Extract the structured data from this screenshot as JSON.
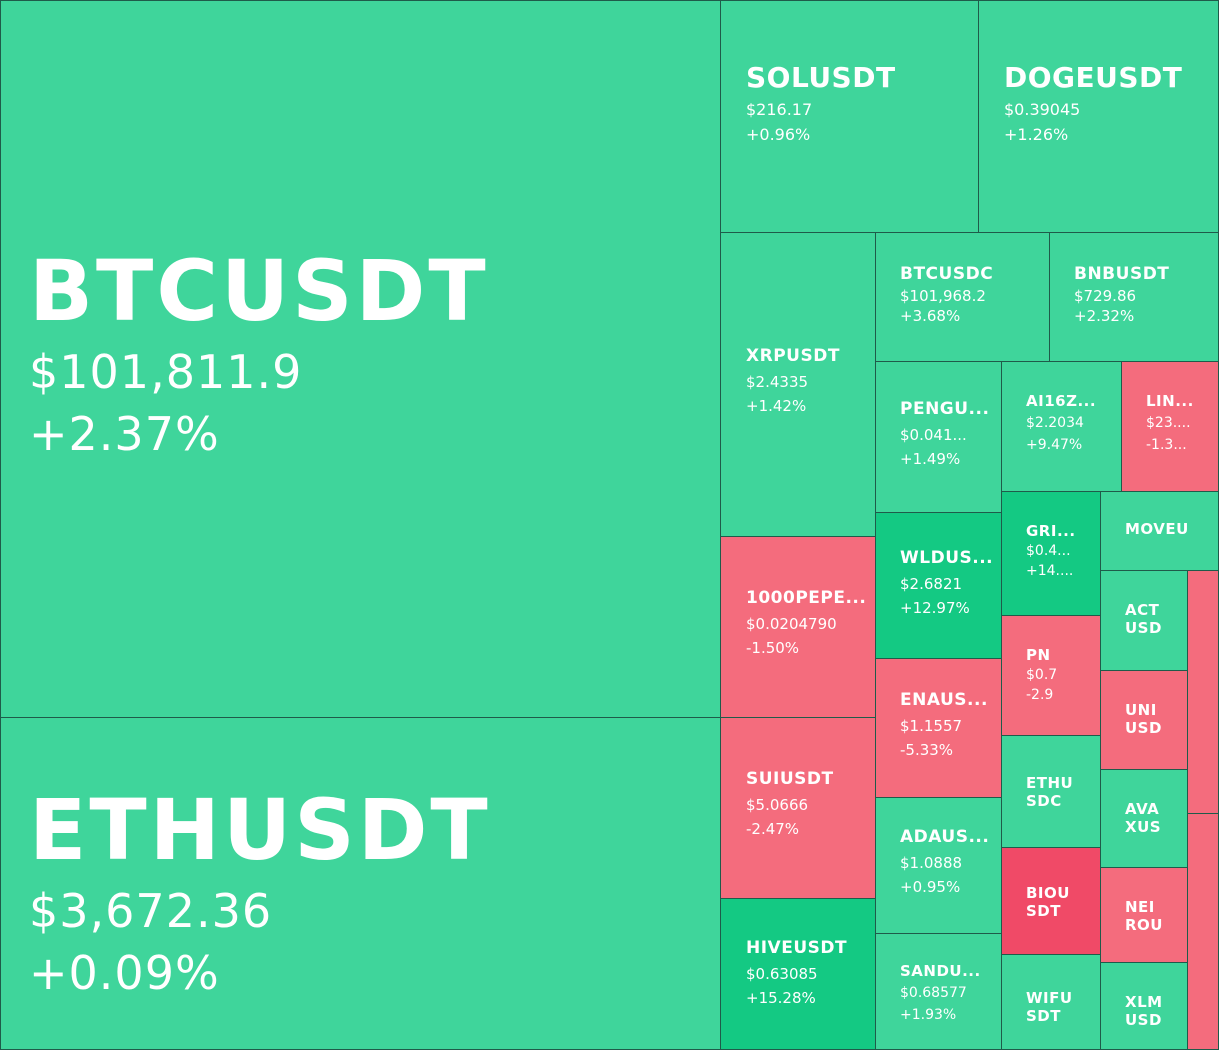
{
  "tiles": {
    "btc": {
      "symbol": "BTCUSDT",
      "price": "$101,811.9",
      "change": "+2.37%"
    },
    "eth": {
      "symbol": "ETHUSDT",
      "price": "$3,672.36",
      "change": "+0.09%"
    },
    "sol": {
      "symbol": "SOLUSDT",
      "price": "$216.17",
      "change": "+0.96%"
    },
    "doge": {
      "symbol": "DOGEUSDT",
      "price": "$0.39045",
      "change": "+1.26%"
    },
    "xrp": {
      "symbol": "XRPUSDT",
      "price": "$2.4335",
      "change": "+1.42%"
    },
    "btcusdc": {
      "symbol": "BTCUSDC",
      "price": "$101,968.2",
      "change": "+3.68%"
    },
    "bnb": {
      "symbol": "BNBUSDT",
      "price": "$729.86",
      "change": "+2.32%"
    },
    "pengu": {
      "symbol": "PENGU...",
      "price": "$0.041...",
      "change": "+1.49%"
    },
    "ai16z": {
      "symbol": "AI16Z...",
      "price": "$2.2034",
      "change": "+9.47%"
    },
    "lin": {
      "symbol": "LIN...",
      "price": "$23....",
      "change": "-1.3..."
    },
    "pepe": {
      "symbol": "1000PEPE...",
      "price": "$0.0204790",
      "change": "-1.50%"
    },
    "wld": {
      "symbol": "WLDUS...",
      "price": "$2.6821",
      "change": "+12.97%"
    },
    "gri": {
      "symbol": "GRI...",
      "price": "$0.4...",
      "change": "+14...."
    },
    "moveu": {
      "symbol": "MOVEU"
    },
    "act": {
      "symbol": "ACT USD"
    },
    "pn": {
      "symbol": "PN",
      "price": "$0.7",
      "change": "-2.9"
    },
    "ena": {
      "symbol": "ENAUS...",
      "price": "$1.1557",
      "change": "-5.33%"
    },
    "uni": {
      "symbol": "UNI USD"
    },
    "sui": {
      "symbol": "SUIUSDT",
      "price": "$5.0666",
      "change": "-2.47%"
    },
    "ethusdc": {
      "symbol": "ETHU SDC"
    },
    "ada": {
      "symbol": "ADAUS...",
      "price": "$1.0888",
      "change": "+0.95%"
    },
    "ava": {
      "symbol": "AVA XUS"
    },
    "biou": {
      "symbol": "BIOU SDT"
    },
    "nei": {
      "symbol": "NEI ROU"
    },
    "hive": {
      "symbol": "HIVEUSDT",
      "price": "$0.63085",
      "change": "+15.28%"
    },
    "sand": {
      "symbol": "SANDU...",
      "price": "$0.68577",
      "change": "+1.93%"
    },
    "wif": {
      "symbol": "WIFU SDT"
    },
    "xlm": {
      "symbol": "XLM USD"
    }
  },
  "colors": {
    "up": "#3fd59b",
    "up_strong": "#14c983",
    "down": "#f46c7d",
    "down_strong": "#f04a67"
  }
}
